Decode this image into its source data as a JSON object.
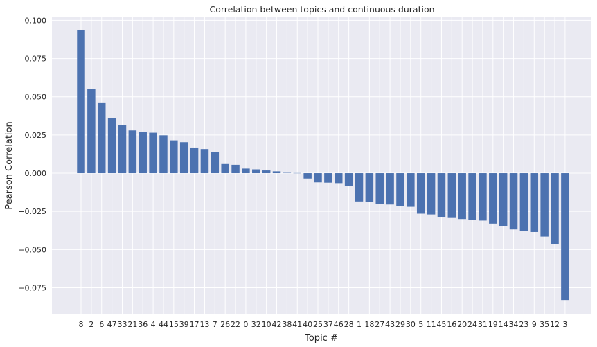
{
  "chart_data": {
    "type": "bar",
    "title": "Correlation between topics and continuous duration",
    "xlabel": "Topic #",
    "ylabel": "Pearson Correlation",
    "ylim": [
      -0.092,
      0.102
    ],
    "yticks": [
      "0.100",
      "0.075",
      "0.050",
      "0.025",
      "0.000",
      "−0.025",
      "−0.050",
      "−0.075"
    ],
    "ytick_values": [
      0.1,
      0.075,
      0.05,
      0.025,
      0.0,
      -0.025,
      -0.05,
      -0.075
    ],
    "grid": true,
    "bar_color": "#4c72b0",
    "background_color": "#eaeaf2",
    "categories": [
      "8",
      "2",
      "6",
      "47",
      "33",
      "21",
      "36",
      "4",
      "44",
      "15",
      "39",
      "17",
      "13",
      "7",
      "26",
      "22",
      "0",
      "32",
      "10",
      "42",
      "38",
      "41",
      "40",
      "25",
      "37",
      "46",
      "28",
      "1",
      "18",
      "27",
      "43",
      "29",
      "30",
      "5",
      "11",
      "45",
      "16",
      "20",
      "24",
      "31",
      "19",
      "14",
      "34",
      "23",
      "9",
      "35",
      "12",
      "3"
    ],
    "values": [
      0.0935,
      0.0552,
      0.0463,
      0.036,
      0.0315,
      0.028,
      0.0272,
      0.0265,
      0.0248,
      0.0215,
      0.0203,
      0.0168,
      0.0158,
      0.0137,
      0.006,
      0.0055,
      0.003,
      0.0025,
      0.0018,
      0.0012,
      0.0002,
      0.0001,
      -0.0035,
      -0.006,
      -0.0062,
      -0.0065,
      -0.0085,
      -0.0185,
      -0.019,
      -0.02,
      -0.0205,
      -0.0215,
      -0.022,
      -0.0265,
      -0.027,
      -0.029,
      -0.0293,
      -0.03,
      -0.0305,
      -0.031,
      -0.033,
      -0.0345,
      -0.0368,
      -0.0378,
      -0.0385,
      -0.0415,
      -0.0465,
      -0.083
    ]
  }
}
